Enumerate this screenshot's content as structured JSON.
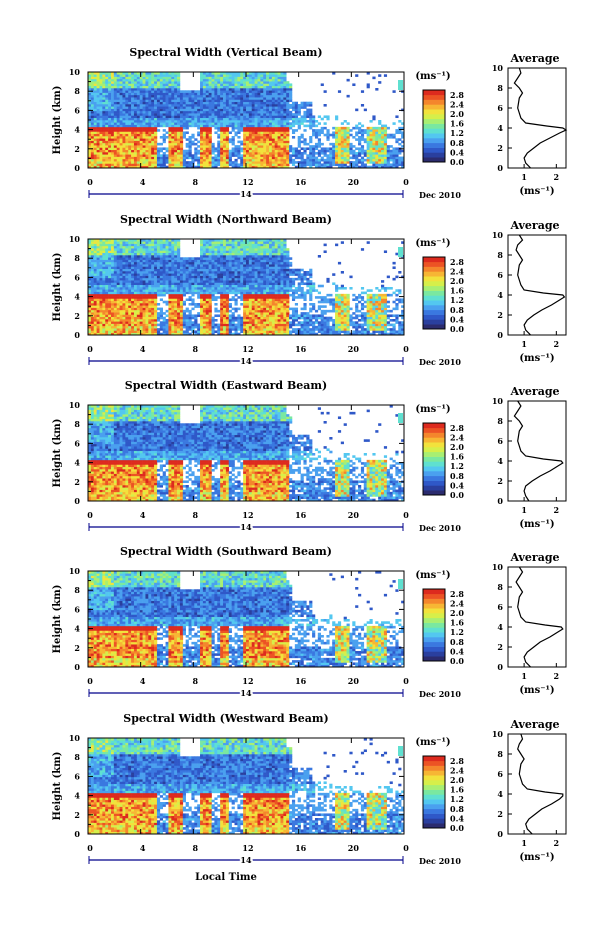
{
  "colors": {
    "colormap": [
      "#2b2b6e",
      "#2a3f9e",
      "#2f58c8",
      "#3a78e0",
      "#4aa0ef",
      "#53c7f0",
      "#5fe0d0",
      "#7ae8a0",
      "#a8ef72",
      "#d6ef4a",
      "#f2e23c",
      "#f7b634",
      "#f4862c",
      "#ec5324",
      "#dd2a1e"
    ]
  },
  "shared": {
    "units_label": "(ms⁻¹)",
    "ylabel": "Height (km)",
    "xlabel": "Local Time",
    "date_label": "Dec 2010",
    "day_label": "14",
    "x_ticks": [
      "0",
      "4",
      "8",
      "12",
      "16",
      "20",
      "0"
    ],
    "y_ticks": [
      "0",
      "2",
      "4",
      "6",
      "8",
      "10"
    ],
    "colorbar_ticks": [
      "0.0",
      "0.4",
      "0.8",
      "1.2",
      "1.6",
      "2.0",
      "2.4",
      "2.8"
    ],
    "avg_title": "Average",
    "avg_x_ticks": [
      "1",
      "2"
    ],
    "avg_xlabel": "(ms⁻¹)"
  },
  "chart_data": [
    {
      "type": "heatmap",
      "title": "Spectral Width (Vertical Beam)",
      "xlabel": "",
      "ylabel": "Height (km)",
      "xlim": [
        0,
        24
      ],
      "ylim": [
        0,
        10
      ],
      "zlim": [
        0,
        3.0
      ],
      "profile": {
        "type": "line",
        "title": "Average",
        "xlim": [
          0.5,
          2.3
        ],
        "ylim": [
          0,
          10
        ],
        "height": [
          0,
          0.5,
          1,
          1.5,
          2,
          2.5,
          3,
          3.5,
          3.8,
          4,
          4.2,
          4.5,
          5,
          6,
          7,
          7.5,
          8,
          8.5,
          9,
          9.5,
          10
        ],
        "width": [
          1.2,
          1.05,
          1.0,
          1.1,
          1.3,
          1.5,
          1.8,
          2.1,
          2.3,
          2.2,
          1.7,
          1.05,
          0.9,
          0.8,
          0.85,
          0.95,
          0.85,
          0.7,
          0.8,
          0.9,
          0.85
        ]
      }
    },
    {
      "type": "heatmap",
      "title": "Spectral Width (Northward Beam)",
      "xlabel": "",
      "ylabel": "Height (km)",
      "xlim": [
        0,
        24
      ],
      "ylim": [
        0,
        10
      ],
      "zlim": [
        0,
        3.0
      ],
      "profile": {
        "type": "line",
        "title": "Average",
        "xlim": [
          0.5,
          2.3
        ],
        "ylim": [
          0,
          10
        ],
        "height": [
          0,
          0.5,
          1,
          1.5,
          2,
          2.5,
          3,
          3.5,
          3.8,
          4,
          4.2,
          4.5,
          5,
          6,
          7,
          7.5,
          8,
          8.5,
          9,
          9.5,
          10
        ],
        "width": [
          1.2,
          1.05,
          1.0,
          1.1,
          1.3,
          1.55,
          1.85,
          2.1,
          2.25,
          2.2,
          1.6,
          1.0,
          0.9,
          0.8,
          0.85,
          0.95,
          0.85,
          0.75,
          0.8,
          0.95,
          0.85
        ]
      }
    },
    {
      "type": "heatmap",
      "title": "Spectral Width (Eastward Beam)",
      "xlabel": "",
      "ylabel": "Height (km)",
      "xlim": [
        0,
        24
      ],
      "ylim": [
        0,
        10
      ],
      "zlim": [
        0,
        3.0
      ],
      "profile": {
        "type": "line",
        "title": "Average",
        "xlim": [
          0.5,
          2.3
        ],
        "ylim": [
          0,
          10
        ],
        "height": [
          0,
          0.5,
          1,
          1.5,
          2,
          2.5,
          3,
          3.5,
          3.8,
          4,
          4.2,
          4.5,
          5,
          6,
          7,
          7.5,
          8,
          8.5,
          9,
          9.5,
          10
        ],
        "width": [
          1.15,
          1.05,
          1.0,
          1.05,
          1.25,
          1.5,
          1.8,
          2.05,
          2.2,
          2.15,
          1.6,
          1.05,
          0.9,
          0.8,
          0.85,
          0.95,
          0.85,
          0.7,
          0.8,
          0.9,
          0.8
        ]
      }
    },
    {
      "type": "heatmap",
      "title": "Spectral Width (Southward Beam)",
      "xlabel": "",
      "ylabel": "Height (km)",
      "xlim": [
        0,
        24
      ],
      "ylim": [
        0,
        10
      ],
      "zlim": [
        0,
        3.0
      ],
      "profile": {
        "type": "line",
        "title": "Average",
        "xlim": [
          0.5,
          2.3
        ],
        "ylim": [
          0,
          10
        ],
        "height": [
          0,
          0.5,
          1,
          1.5,
          2,
          2.5,
          3,
          3.5,
          3.8,
          4,
          4.2,
          4.5,
          5,
          6,
          7,
          7.5,
          8,
          8.5,
          9,
          9.5,
          10
        ],
        "width": [
          1.2,
          1.05,
          1.0,
          1.1,
          1.3,
          1.5,
          1.8,
          2.05,
          2.2,
          2.15,
          1.65,
          1.05,
          0.9,
          0.8,
          0.85,
          0.95,
          0.85,
          0.75,
          0.85,
          0.95,
          0.85
        ]
      }
    },
    {
      "type": "heatmap",
      "title": "Spectral Width (Westward Beam)",
      "xlabel": "Local Time",
      "ylabel": "Height (km)",
      "xlim": [
        0,
        24
      ],
      "ylim": [
        0,
        10
      ],
      "zlim": [
        0,
        3.0
      ],
      "profile": {
        "type": "line",
        "title": "Average",
        "xlim": [
          0.5,
          2.3
        ],
        "ylim": [
          0,
          10
        ],
        "height": [
          0,
          0.5,
          1,
          1.5,
          2,
          2.5,
          3,
          3.5,
          3.8,
          4,
          4.2,
          4.5,
          5,
          6,
          7,
          7.5,
          8,
          8.5,
          9,
          9.5,
          10
        ],
        "width": [
          1.25,
          1.1,
          1.05,
          1.15,
          1.35,
          1.55,
          1.85,
          2.1,
          2.2,
          2.2,
          1.65,
          1.1,
          0.95,
          0.85,
          0.9,
          1.0,
          0.9,
          0.8,
          0.85,
          0.95,
          0.9
        ]
      }
    }
  ]
}
